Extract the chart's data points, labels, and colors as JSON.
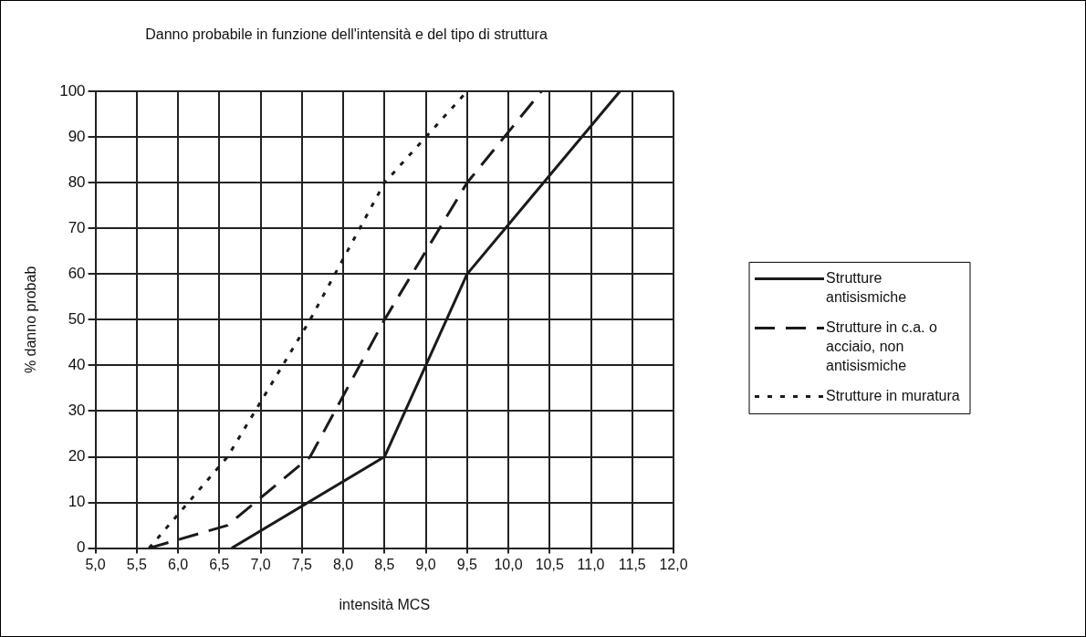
{
  "chart_data": {
    "type": "line",
    "title": "Danno probabile in funzione dell'intensità e del tipo di struttura",
    "xlabel": "intensità MCS",
    "ylabel": "% danno probab",
    "xlim": [
      5,
      12
    ],
    "xticks": [
      {
        "value": 5,
        "label": "5,0"
      },
      {
        "value": 5.5,
        "label": "5,5"
      },
      {
        "value": 6,
        "label": "6,0"
      },
      {
        "value": 6.5,
        "label": "6,5"
      },
      {
        "value": 7,
        "label": "7,0"
      },
      {
        "value": 7.5,
        "label": "7,5"
      },
      {
        "value": 8,
        "label": "8,0"
      },
      {
        "value": 8.5,
        "label": "8,5"
      },
      {
        "value": 9,
        "label": "9,0"
      },
      {
        "value": 9.5,
        "label": "9,5"
      },
      {
        "value": 10,
        "label": "10,0"
      },
      {
        "value": 10.5,
        "label": "10,5"
      },
      {
        "value": 11,
        "label": "11,0"
      },
      {
        "value": 11.5,
        "label": "11,5"
      },
      {
        "value": 12,
        "label": "12,0"
      }
    ],
    "ylim": [
      0,
      100
    ],
    "yticks": [
      0,
      10,
      20,
      30,
      40,
      50,
      60,
      70,
      80,
      90,
      100
    ],
    "grid": true,
    "legend": "right",
    "marker": "none",
    "series": [
      {
        "name": "Strutture antisismiche",
        "color": "#1a1a1a",
        "line_style": "solid",
        "x": [
          6.65,
          8.5,
          9.5,
          11.35
        ],
        "values": [
          0,
          20,
          60,
          100
        ]
      },
      {
        "name": "Strutture in c.a. o acciaio, non antisismiche",
        "color": "#1a1a1a",
        "line_style": "dashed",
        "x": [
          5.65,
          6.6,
          7.6,
          8.5,
          9.5,
          10.4
        ],
        "values": [
          0,
          5,
          20,
          50,
          80,
          100
        ]
      },
      {
        "name": "Strutture in muratura",
        "color": "#1a1a1a",
        "line_style": "dotted",
        "x": [
          5.65,
          6.6,
          7.6,
          8.5,
          9.5
        ],
        "values": [
          0,
          20,
          50,
          80,
          100
        ]
      }
    ]
  }
}
